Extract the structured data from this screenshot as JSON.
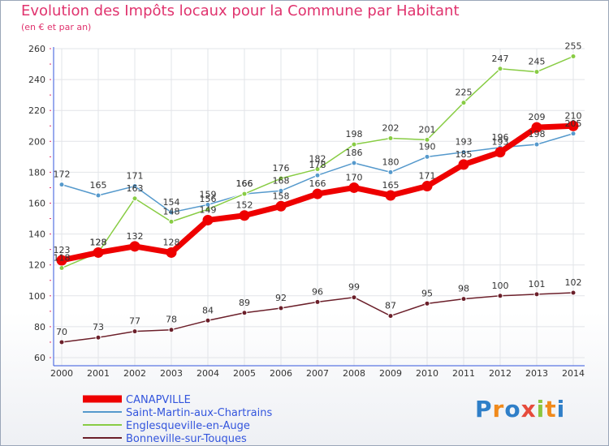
{
  "title": "Evolution des Impôts locaux pour la Commune par Habitant",
  "subtitle": "(en € et par an)",
  "logo": [
    "P",
    "r",
    "o",
    "x",
    "i",
    "t",
    "i"
  ],
  "chart_data": {
    "type": "line",
    "title": "Evolution des Impôts locaux pour la Commune par Habitant",
    "subtitle": "(en € et par an)",
    "xlabel": "",
    "ylabel": "",
    "ylim": [
      60,
      260
    ],
    "yticks": [
      60,
      80,
      100,
      120,
      140,
      160,
      180,
      200,
      220,
      240,
      260
    ],
    "x": [
      "2000",
      "2001",
      "2002",
      "2003",
      "2004",
      "2005",
      "2006",
      "2007",
      "2008",
      "2009",
      "2010",
      "2011",
      "2012",
      "2013",
      "2014"
    ],
    "grid": true,
    "series": [
      {
        "name": "CANAPVILLE",
        "color": "#ee0000",
        "values": [
          123,
          128,
          132,
          128,
          149,
          152,
          158,
          166,
          170,
          165,
          171,
          185,
          193,
          209,
          210
        ],
        "labels": [
          "123",
          "128",
          "132",
          "128",
          "149",
          "152",
          "158",
          "166",
          "170",
          "165",
          "171",
          "185",
          "193",
          "209",
          "210"
        ]
      },
      {
        "name": "Saint-Martin-aux-Chartrains",
        "color": "#5599cc",
        "values": [
          172,
          165,
          171,
          154,
          159,
          166,
          168,
          178,
          186,
          180,
          190,
          193,
          196,
          198,
          205
        ],
        "labels": [
          "172",
          "165",
          "171",
          "154",
          "159",
          "166",
          "168",
          "178",
          "186",
          "180",
          "190",
          "193",
          "196",
          "198",
          "205"
        ]
      },
      {
        "name": "Englesqueville-en-Auge",
        "color": "#88cc44",
        "values": [
          118,
          128,
          163,
          148,
          156,
          166,
          176,
          182,
          198,
          202,
          201,
          225,
          247,
          245,
          255
        ],
        "labels": [
          "118",
          "128",
          "163",
          "148",
          "156",
          "166",
          "176",
          "182",
          "198",
          "202",
          "201",
          "225",
          "247",
          "245",
          "255"
        ]
      },
      {
        "name": "Bonneville-sur-Touques",
        "color": "#6b1f2a",
        "values": [
          70,
          73,
          77,
          78,
          84,
          89,
          92,
          96,
          99,
          87,
          95,
          98,
          100,
          101,
          102
        ],
        "labels": [
          "70",
          "73",
          "77",
          "78",
          "84",
          "89",
          "92",
          "96",
          "99",
          "87",
          "95",
          "98",
          "100",
          "101",
          "102"
        ]
      }
    ],
    "legend": [
      "CANAPVILLE",
      "Saint-Martin-aux-Chartrains",
      "Englesqueville-en-Auge",
      "Bonneville-sur-Touques"
    ],
    "legend_position": "bottom-left"
  }
}
